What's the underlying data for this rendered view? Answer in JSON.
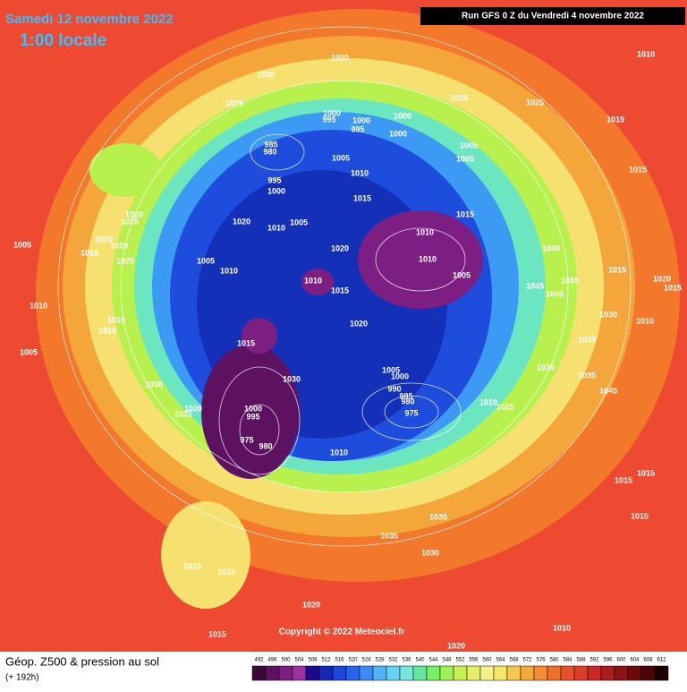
{
  "header": {
    "date": "Samedi 12 novembre 2022",
    "time": "1:00 locale",
    "run": "Run GFS 0 Z du Vendredi 4 novembre 2022"
  },
  "copyright": "Copyright © 2022 Meteociel.fr",
  "footer": {
    "title": "Géop. Z500 & pression au sol",
    "lead": "(+ 192h)"
  },
  "legend": {
    "ticks": [
      492,
      496,
      500,
      504,
      508,
      512,
      516,
      520,
      524,
      528,
      532,
      536,
      540,
      544,
      548,
      552,
      556,
      560,
      564,
      568,
      572,
      576,
      580,
      584,
      588,
      592,
      596,
      600,
      604,
      608,
      612
    ],
    "colors": [
      "#3a0b3a",
      "#5c1260",
      "#7d1e82",
      "#9a32a0",
      "#1e0a8c",
      "#1428b4",
      "#1e46dc",
      "#2864f0",
      "#3c8cf5",
      "#50b4f5",
      "#64d2f0",
      "#78e6dc",
      "#64e6a0",
      "#78f064",
      "#a0f050",
      "#c8f050",
      "#e6f064",
      "#f5f08c",
      "#f5e664",
      "#f5c850",
      "#f5aa3c",
      "#f58c32",
      "#f06e28",
      "#e6502d",
      "#dc3c28",
      "#c82828",
      "#aa1e1e",
      "#8c1414",
      "#6e0a0a",
      "#4b0505",
      "#1e0000"
    ]
  },
  "isobar_labels": [
    1020,
    1030,
    1025,
    1025,
    1025,
    1010,
    1015,
    1015,
    1000,
    995,
    1000,
    995,
    1000,
    1000,
    985,
    980,
    1005,
    1005,
    1005,
    995,
    1000,
    1010,
    1015,
    1015,
    1020,
    1005,
    1010,
    1020,
    1010,
    1010,
    1005,
    1040,
    1045,
    1040,
    1035,
    1005,
    1010,
    1010,
    1015,
    1020,
    1030,
    1010,
    1015,
    1020,
    1015,
    1035,
    1035,
    1035,
    1045,
    1015,
    1005,
    1000,
    990,
    985,
    980,
    975,
    1010,
    1025,
    1030,
    1030,
    1025,
    1020,
    1000,
    995,
    975,
    980,
    1010,
    1035,
    1035,
    1030,
    1010,
    1015,
    1020,
    1015,
    1020,
    1010,
    1015,
    1015,
    1015,
    1005,
    1010,
    1005,
    1020,
    1025,
    1020,
    1020,
    1015,
    1025,
    1015,
    1010
  ]
}
